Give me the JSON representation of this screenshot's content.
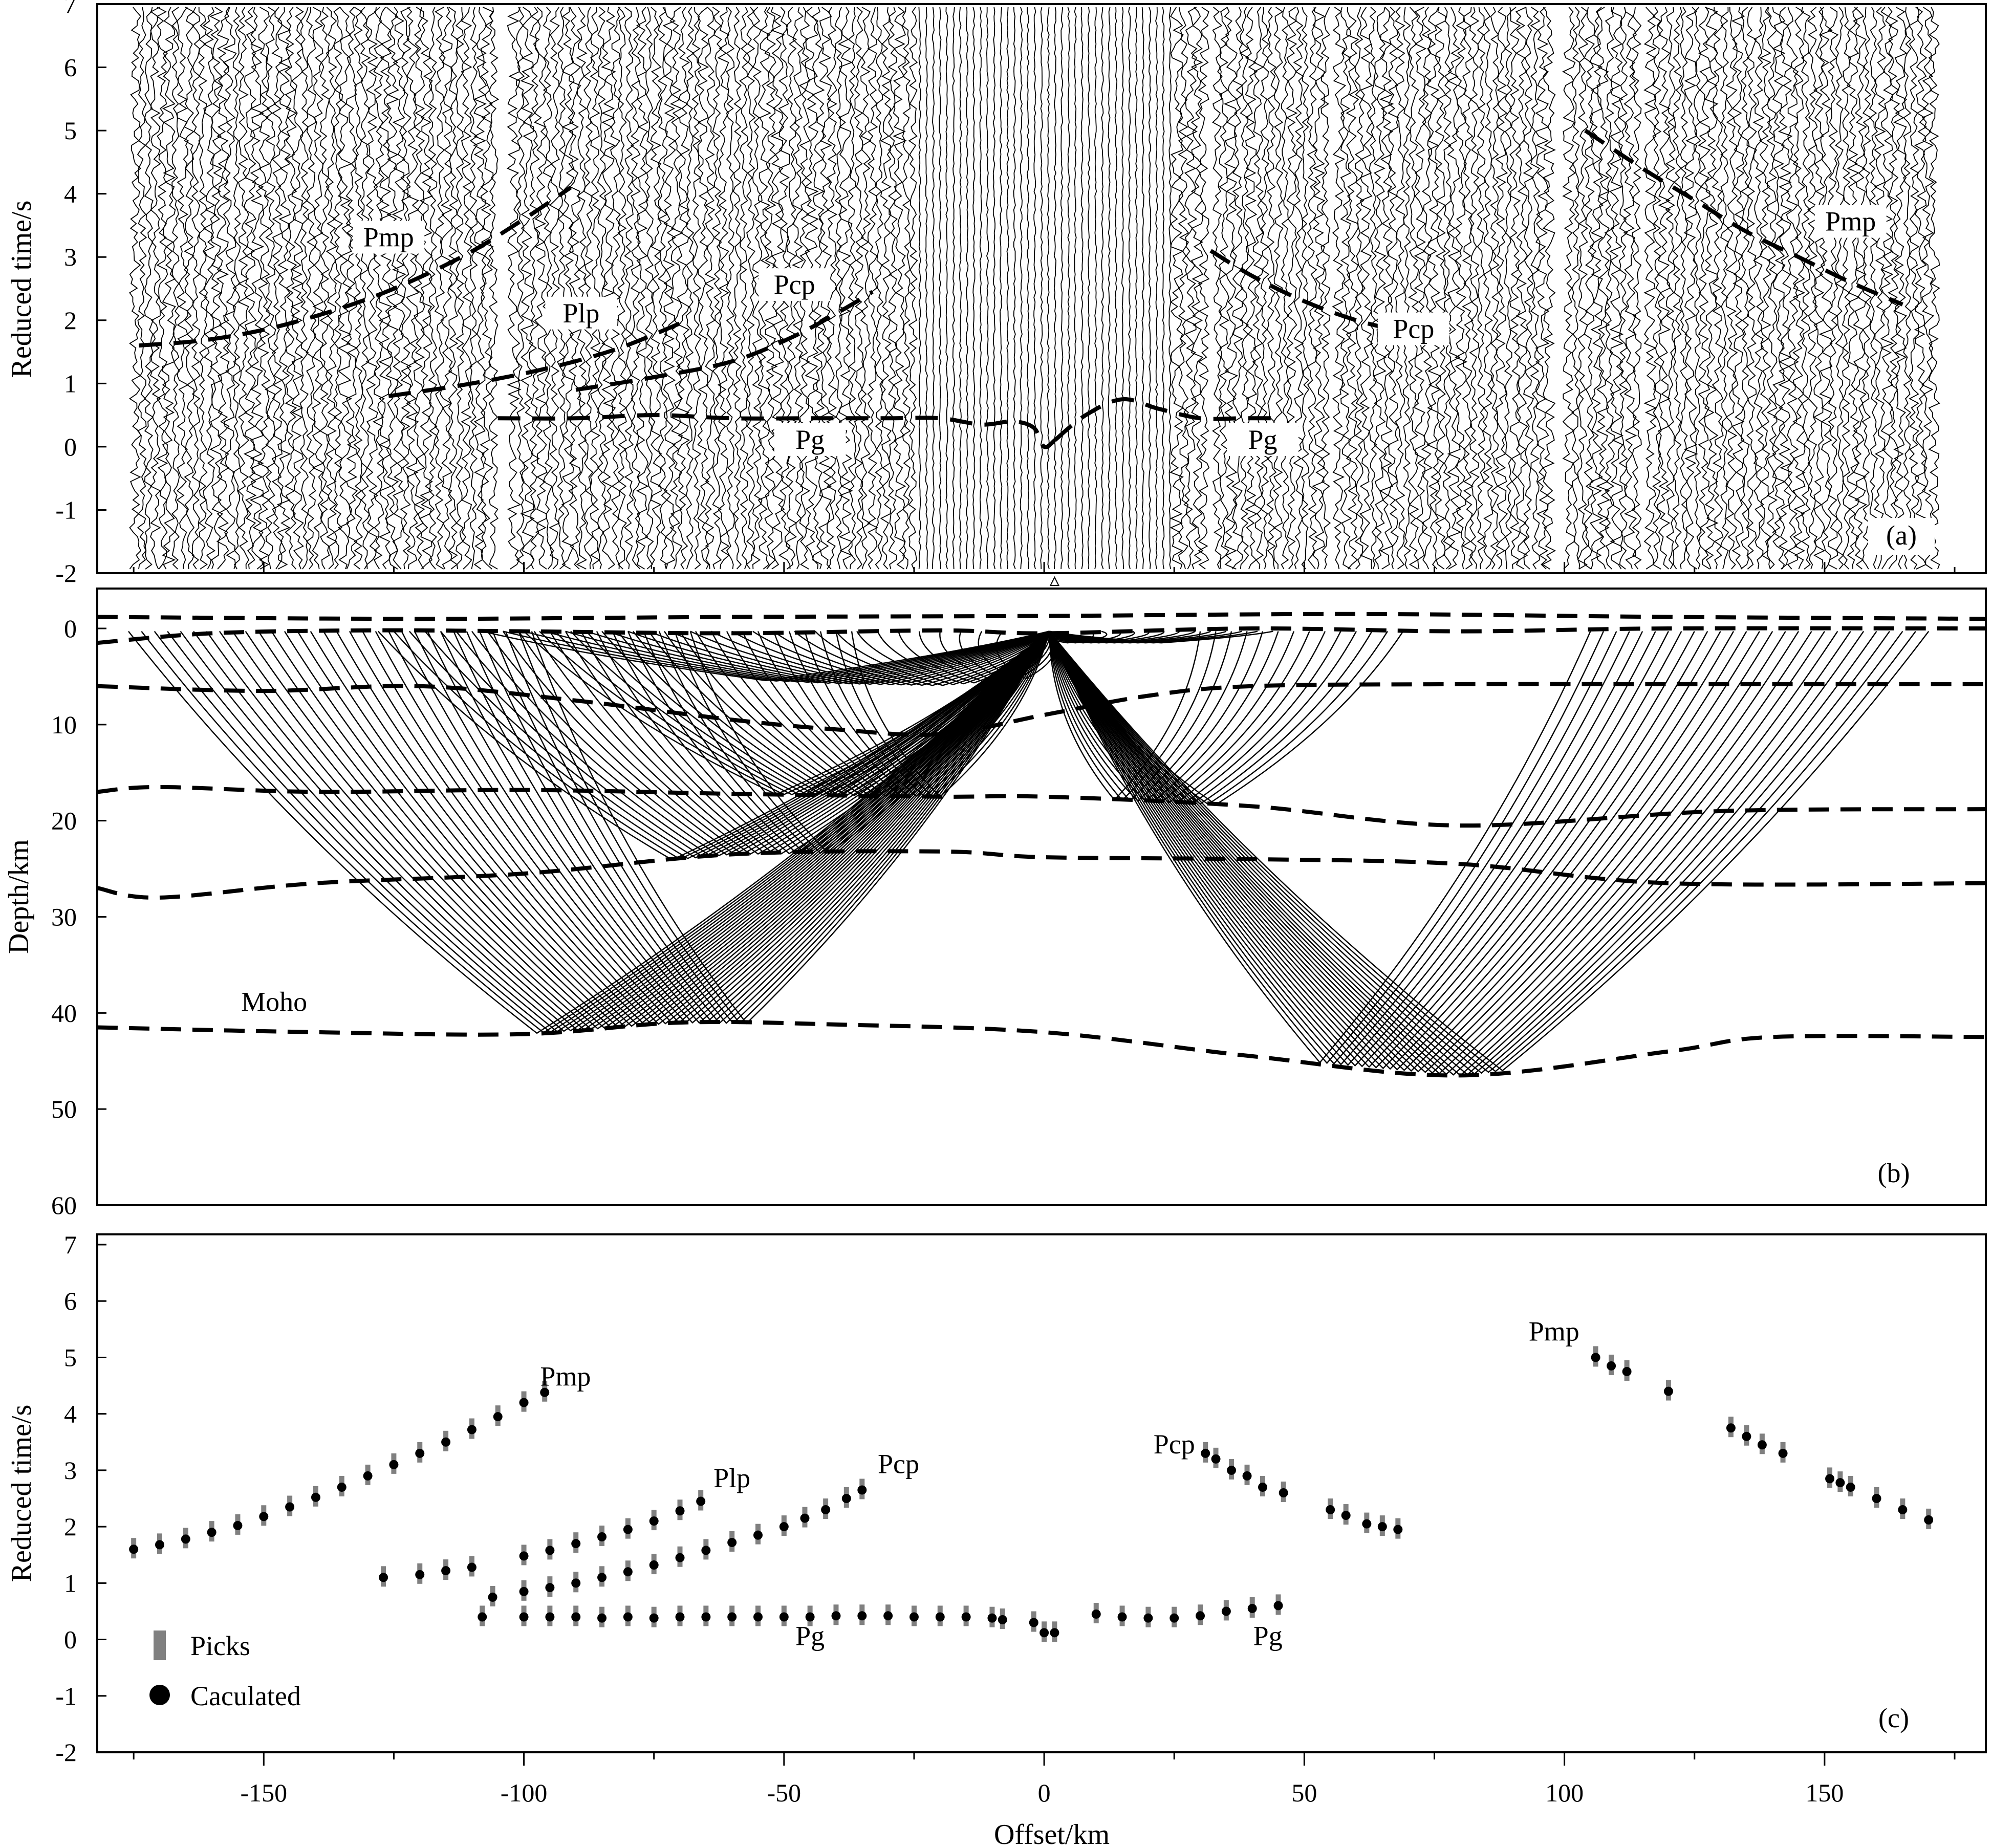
{
  "colors": {
    "pick": "#808080",
    "calculated": "#000000",
    "line": "#000000"
  },
  "chart_data": [
    {
      "type": "line",
      "panel_label": "(a)",
      "ylabel": "Reduced time/s",
      "xlim": [
        -182,
        181
      ],
      "ylim": [
        -2,
        7
      ],
      "yticks": [
        "-2",
        "-1",
        "0",
        "1",
        "2",
        "3",
        "4",
        "5",
        "6",
        "7"
      ],
      "annotations": [
        {
          "text": "Pmp",
          "x": -126,
          "y": 3.2
        },
        {
          "text": "Plp",
          "x": -89,
          "y": 2.0
        },
        {
          "text": "Pcp",
          "x": -48,
          "y": 2.45
        },
        {
          "text": "Pg",
          "x": -45,
          "y": 0.0
        },
        {
          "text": "Pcp",
          "x": 71,
          "y": 1.75
        },
        {
          "text": "Pg",
          "x": 42,
          "y": 0.0
        },
        {
          "text": "Pmp",
          "x": 155,
          "y": 3.45
        }
      ],
      "series": [
        {
          "x": [
            -174,
            -160,
            -145,
            -128,
            -112,
            -100,
            -91
          ],
          "y": [
            1.6,
            1.7,
            1.95,
            2.4,
            3.0,
            3.6,
            4.1
          ]
        },
        {
          "x": [
            -126,
            -110,
            -95,
            -82,
            -70
          ],
          "y": [
            0.8,
            1.0,
            1.25,
            1.55,
            1.95
          ]
        },
        {
          "x": [
            -90,
            -75,
            -60,
            -48,
            -38,
            -33
          ],
          "y": [
            0.9,
            1.1,
            1.35,
            1.75,
            2.2,
            2.45
          ]
        },
        {
          "x": [
            -105,
            -90,
            -75,
            -60,
            -45,
            -30,
            -20,
            -12,
            -6,
            -2,
            0,
            2
          ],
          "y": [
            0.45,
            0.45,
            0.5,
            0.45,
            0.45,
            0.45,
            0.45,
            0.35,
            0.4,
            0.3,
            0.0,
            0.1
          ]
        },
        {
          "x": [
            2,
            8,
            15,
            22,
            30,
            38,
            45
          ],
          "y": [
            0.1,
            0.5,
            0.75,
            0.6,
            0.45,
            0.45,
            0.45
          ]
        },
        {
          "x": [
            32,
            40,
            50,
            60,
            70
          ],
          "y": [
            3.1,
            2.7,
            2.3,
            2.0,
            1.8
          ]
        },
        {
          "x": [
            104,
            115,
            125,
            135,
            145,
            155,
            165
          ],
          "y": [
            5.0,
            4.4,
            3.9,
            3.4,
            3.0,
            2.6,
            2.25
          ]
        }
      ]
    },
    {
      "type": "line",
      "panel_label": "(b)",
      "ylabel": "Depth/km",
      "xlim": [
        -182,
        181
      ],
      "ylim": [
        0,
        60
      ],
      "yticks": [
        "0",
        "10",
        "20",
        "30",
        "40",
        "50",
        "60"
      ],
      "annotations": [
        {
          "text": "Moho",
          "x": -148,
          "y": 39.8
        }
      ],
      "interfaces": [
        {
          "x": [
            -182,
            -120,
            -60,
            0,
            60,
            120,
            181
          ],
          "y": [
            -1.2,
            -1.0,
            -1.2,
            -1.3,
            -1.5,
            -1.2,
            -1.0
          ]
        },
        {
          "x": [
            -182,
            -160,
            -130,
            -100,
            -60,
            -20,
            0,
            40,
            80,
            120,
            181
          ],
          "y": [
            1.5,
            0.5,
            0.2,
            0.3,
            0.5,
            0.2,
            0.5,
            0.0,
            0.3,
            0.0,
            0.0
          ]
        },
        {
          "x": [
            -182,
            -150,
            -120,
            -90,
            -60,
            -40,
            -20,
            0,
            20,
            40,
            80,
            120,
            181
          ],
          "y": [
            6.0,
            6.5,
            6.0,
            7.5,
            9.5,
            10.5,
            11.0,
            9.0,
            7.0,
            6.0,
            5.8,
            5.8,
            5.8
          ]
        },
        {
          "x": [
            -182,
            -170,
            -140,
            -100,
            -60,
            -20,
            0,
            40,
            80,
            130,
            181
          ],
          "y": [
            17.0,
            16.5,
            17.0,
            16.8,
            17.2,
            17.5,
            17.5,
            18.5,
            20.5,
            19.0,
            18.8
          ]
        },
        {
          "x": [
            -182,
            -170,
            -140,
            -100,
            -60,
            -20,
            0,
            40,
            80,
            120,
            181
          ],
          "y": [
            27.0,
            28.0,
            26.5,
            25.5,
            23.5,
            23.2,
            23.8,
            24.0,
            24.5,
            26.5,
            26.5
          ]
        },
        {
          "x": [
            -182,
            -140,
            -100,
            -70,
            -40,
            0,
            40,
            80,
            120,
            140,
            181
          ],
          "y": [
            41.5,
            42.0,
            42.2,
            41.0,
            41.2,
            42.0,
            44.5,
            46.5,
            44.0,
            42.5,
            42.5
          ]
        }
      ]
    },
    {
      "type": "scatter",
      "panel_label": "(c)",
      "xlabel": "Offset/km",
      "ylabel": "Reduced time/s",
      "xlim": [
        -182,
        181
      ],
      "ylim": [
        -2,
        7
      ],
      "xticks": [
        "-150",
        "-100",
        "-50",
        "0",
        "50",
        "100",
        "150"
      ],
      "yticks": [
        "-2",
        "-1",
        "0",
        "1",
        "2",
        "3",
        "4",
        "5",
        "6",
        "7"
      ],
      "annotations": [
        {
          "text": "Pmp",
          "x": -92,
          "y": 4.5
        },
        {
          "text": "Plp",
          "x": -60,
          "y": 2.7
        },
        {
          "text": "Pcp",
          "x": -28,
          "y": 2.95
        },
        {
          "text": "Pg",
          "x": -45,
          "y": -0.1
        },
        {
          "text": "Pcp",
          "x": 25,
          "y": 3.3
        },
        {
          "text": "Pg",
          "x": 43,
          "y": -0.1
        },
        {
          "text": "Pmp",
          "x": 98,
          "y": 5.3
        }
      ],
      "legend": [
        {
          "label": "Picks"
        },
        {
          "label": "Caculated"
        }
      ],
      "series": [
        {
          "x": [
            -175,
            -170,
            -165,
            -160,
            -155,
            -150,
            -145,
            -140,
            -135,
            -130,
            -125,
            -120,
            -115,
            -110,
            -105,
            -100,
            -96
          ],
          "y": [
            1.6,
            1.68,
            1.78,
            1.9,
            2.02,
            2.18,
            2.35,
            2.52,
            2.7,
            2.9,
            3.1,
            3.3,
            3.5,
            3.72,
            3.95,
            4.2,
            4.38
          ]
        },
        {
          "x": [
            -127,
            -120,
            -115,
            -110,
            -106,
            -100,
            -95,
            -90,
            -85,
            -80,
            -75,
            -70,
            -66
          ],
          "y": [
            1.1,
            1.15,
            1.22,
            1.28,
            0.75,
            1.48,
            1.58,
            1.7,
            1.82,
            1.95,
            2.1,
            2.28,
            2.45
          ]
        },
        {
          "x": [
            -100,
            -95,
            -90,
            -85,
            -80,
            -75,
            -70,
            -65,
            -60,
            -55,
            -50,
            -46,
            -42,
            -38,
            -35
          ],
          "y": [
            0.85,
            0.92,
            1.0,
            1.1,
            1.2,
            1.32,
            1.45,
            1.58,
            1.72,
            1.85,
            2.0,
            2.15,
            2.3,
            2.5,
            2.65
          ]
        },
        {
          "x": [
            -108,
            -100,
            -95,
            -90,
            -85,
            -80,
            -75,
            -70,
            -65,
            -60,
            -55,
            -50,
            -45,
            -40,
            -35,
            -30,
            -25,
            -20,
            -15,
            -10,
            -8,
            -2,
            0,
            2
          ],
          "y": [
            0.4,
            0.4,
            0.4,
            0.4,
            0.38,
            0.4,
            0.38,
            0.4,
            0.4,
            0.4,
            0.4,
            0.4,
            0.4,
            0.42,
            0.42,
            0.42,
            0.4,
            0.4,
            0.4,
            0.38,
            0.35,
            0.3,
            0.12,
            0.12
          ]
        },
        {
          "x": [
            10,
            15,
            20,
            25,
            30,
            35,
            40,
            45
          ],
          "y": [
            0.45,
            0.4,
            0.38,
            0.38,
            0.42,
            0.5,
            0.55,
            0.6
          ]
        },
        {
          "x": [
            31,
            33,
            36,
            39,
            42,
            46,
            55,
            58,
            62,
            65,
            68
          ],
          "y": [
            3.3,
            3.2,
            3.0,
            2.9,
            2.7,
            2.6,
            2.3,
            2.2,
            2.05,
            2.0,
            1.95
          ]
        },
        {
          "x": [
            106,
            109,
            112,
            120,
            132,
            135,
            138,
            142,
            151,
            153,
            155,
            160,
            165,
            170
          ],
          "y": [
            5.0,
            4.85,
            4.75,
            4.4,
            3.75,
            3.6,
            3.45,
            3.3,
            2.85,
            2.78,
            2.7,
            2.5,
            2.3,
            2.12
          ]
        }
      ]
    }
  ]
}
